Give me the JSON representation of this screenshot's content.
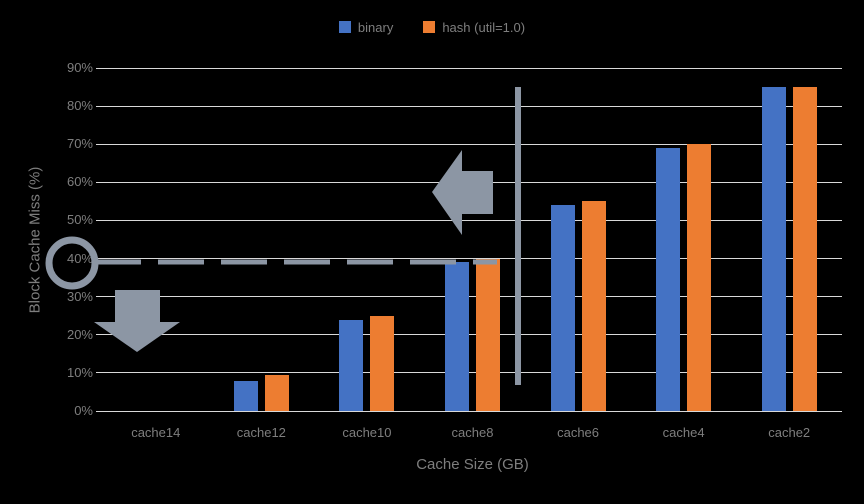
{
  "chart_data": {
    "type": "bar",
    "title": "",
    "xlabel": "Cache Size (GB)",
    "ylabel": "Block Cache Miss (%)",
    "categories": [
      "cache14",
      "cache12",
      "cache10",
      "cache8",
      "cache6",
      "cache4",
      "cache2"
    ],
    "series": [
      {
        "name": "binary",
        "color": "#4472C4",
        "values": [
          0,
          8,
          24,
          39,
          54,
          69,
          85
        ]
      },
      {
        "name": "hash (util=1.0)",
        "color": "#ED7D31",
        "values": [
          0,
          9.5,
          25,
          40,
          55,
          70,
          85
        ]
      }
    ],
    "ylim": [
      0,
      90
    ],
    "ytick_values": [
      0,
      10,
      20,
      30,
      40,
      50,
      60,
      70,
      80,
      90
    ],
    "yticks": [
      "0%",
      "10%",
      "20%",
      "30%",
      "40%",
      "50%",
      "60%",
      "70%",
      "80%",
      "90%"
    ],
    "grid": true,
    "legend_position": "top",
    "annotations": {
      "circled_ytick": "40%",
      "dashed_line_level": "40%",
      "vertical_divider_between": [
        "cache8",
        "cache6"
      ],
      "arrow_directions": [
        "left",
        "down"
      ]
    },
    "colors": {
      "background": "#000000",
      "gridline": "#D9D9D9",
      "text": "#7E7E7E",
      "annotation_gray": "#8C96A4"
    }
  }
}
